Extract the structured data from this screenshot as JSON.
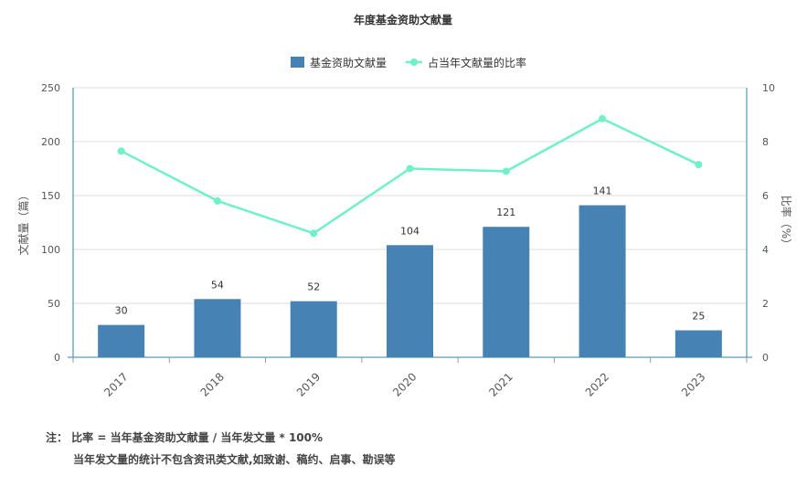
{
  "chart_data": {
    "type": "bar+line",
    "title": "年度基金资助文献量",
    "categories": [
      "2017",
      "2018",
      "2019",
      "2020",
      "2021",
      "2022",
      "2023"
    ],
    "series": [
      {
        "name": "基金资助文献量",
        "type": "bar",
        "axis": "left",
        "color": "#4682b4",
        "values": [
          30,
          54,
          52,
          104,
          121,
          141,
          25
        ]
      },
      {
        "name": "占当年文献量的比率",
        "type": "line",
        "axis": "right",
        "color": "#6ff0c8",
        "values": [
          7.65,
          5.8,
          4.6,
          7.0,
          6.9,
          8.85,
          7.15
        ]
      }
    ],
    "ylabel": "文献量（篇）",
    "ylabel_right": "比率（%）",
    "ylim": [
      0,
      250
    ],
    "yticks": [
      0,
      50,
      100,
      150,
      200,
      250
    ],
    "ylim_right": [
      0,
      10
    ],
    "yticks_right": [
      0,
      2,
      4,
      6,
      8,
      10
    ],
    "grid": true,
    "legend_position": "top-center"
  },
  "notes": {
    "line1": "注： 比率 = 当年基金资助文献量 / 当年发文量 * 100%",
    "line2": "当年发文量的统计不包含资讯类文献,如致谢、稿约、启事、勘误等"
  }
}
